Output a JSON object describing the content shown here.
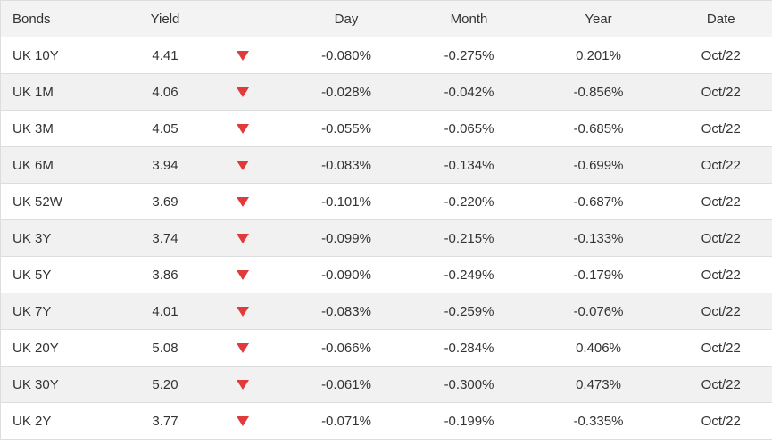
{
  "colors": {
    "arrow_down_red": "#e03a3a",
    "header_background": "#f3f3f3",
    "stripe_background": "#f1f1f1",
    "border": "#dddddd",
    "text": "#333333"
  },
  "table": {
    "headers": {
      "bonds": "Bonds",
      "yield": "Yield",
      "change_indicator": "",
      "day": "Day",
      "month": "Month",
      "year": "Year",
      "date": "Date"
    },
    "rows": [
      {
        "bond": "UK 10Y",
        "yield": "4.41",
        "direction": "down",
        "day": "-0.080%",
        "month": "-0.275%",
        "year": "0.201%",
        "date": "Oct/22"
      },
      {
        "bond": "UK 1M",
        "yield": "4.06",
        "direction": "down",
        "day": "-0.028%",
        "month": "-0.042%",
        "year": "-0.856%",
        "date": "Oct/22"
      },
      {
        "bond": "UK 3M",
        "yield": "4.05",
        "direction": "down",
        "day": "-0.055%",
        "month": "-0.065%",
        "year": "-0.685%",
        "date": "Oct/22"
      },
      {
        "bond": "UK 6M",
        "yield": "3.94",
        "direction": "down",
        "day": "-0.083%",
        "month": "-0.134%",
        "year": "-0.699%",
        "date": "Oct/22"
      },
      {
        "bond": "UK 52W",
        "yield": "3.69",
        "direction": "down",
        "day": "-0.101%",
        "month": "-0.220%",
        "year": "-0.687%",
        "date": "Oct/22"
      },
      {
        "bond": "UK 3Y",
        "yield": "3.74",
        "direction": "down",
        "day": "-0.099%",
        "month": "-0.215%",
        "year": "-0.133%",
        "date": "Oct/22"
      },
      {
        "bond": "UK 5Y",
        "yield": "3.86",
        "direction": "down",
        "day": "-0.090%",
        "month": "-0.249%",
        "year": "-0.179%",
        "date": "Oct/22"
      },
      {
        "bond": "UK 7Y",
        "yield": "4.01",
        "direction": "down",
        "day": "-0.083%",
        "month": "-0.259%",
        "year": "-0.076%",
        "date": "Oct/22"
      },
      {
        "bond": "UK 20Y",
        "yield": "5.08",
        "direction": "down",
        "day": "-0.066%",
        "month": "-0.284%",
        "year": "0.406%",
        "date": "Oct/22"
      },
      {
        "bond": "UK 30Y",
        "yield": "5.20",
        "direction": "down",
        "day": "-0.061%",
        "month": "-0.300%",
        "year": "0.473%",
        "date": "Oct/22"
      },
      {
        "bond": "UK 2Y",
        "yield": "3.77",
        "direction": "down",
        "day": "-0.071%",
        "month": "-0.199%",
        "year": "-0.335%",
        "date": "Oct/22"
      }
    ]
  }
}
